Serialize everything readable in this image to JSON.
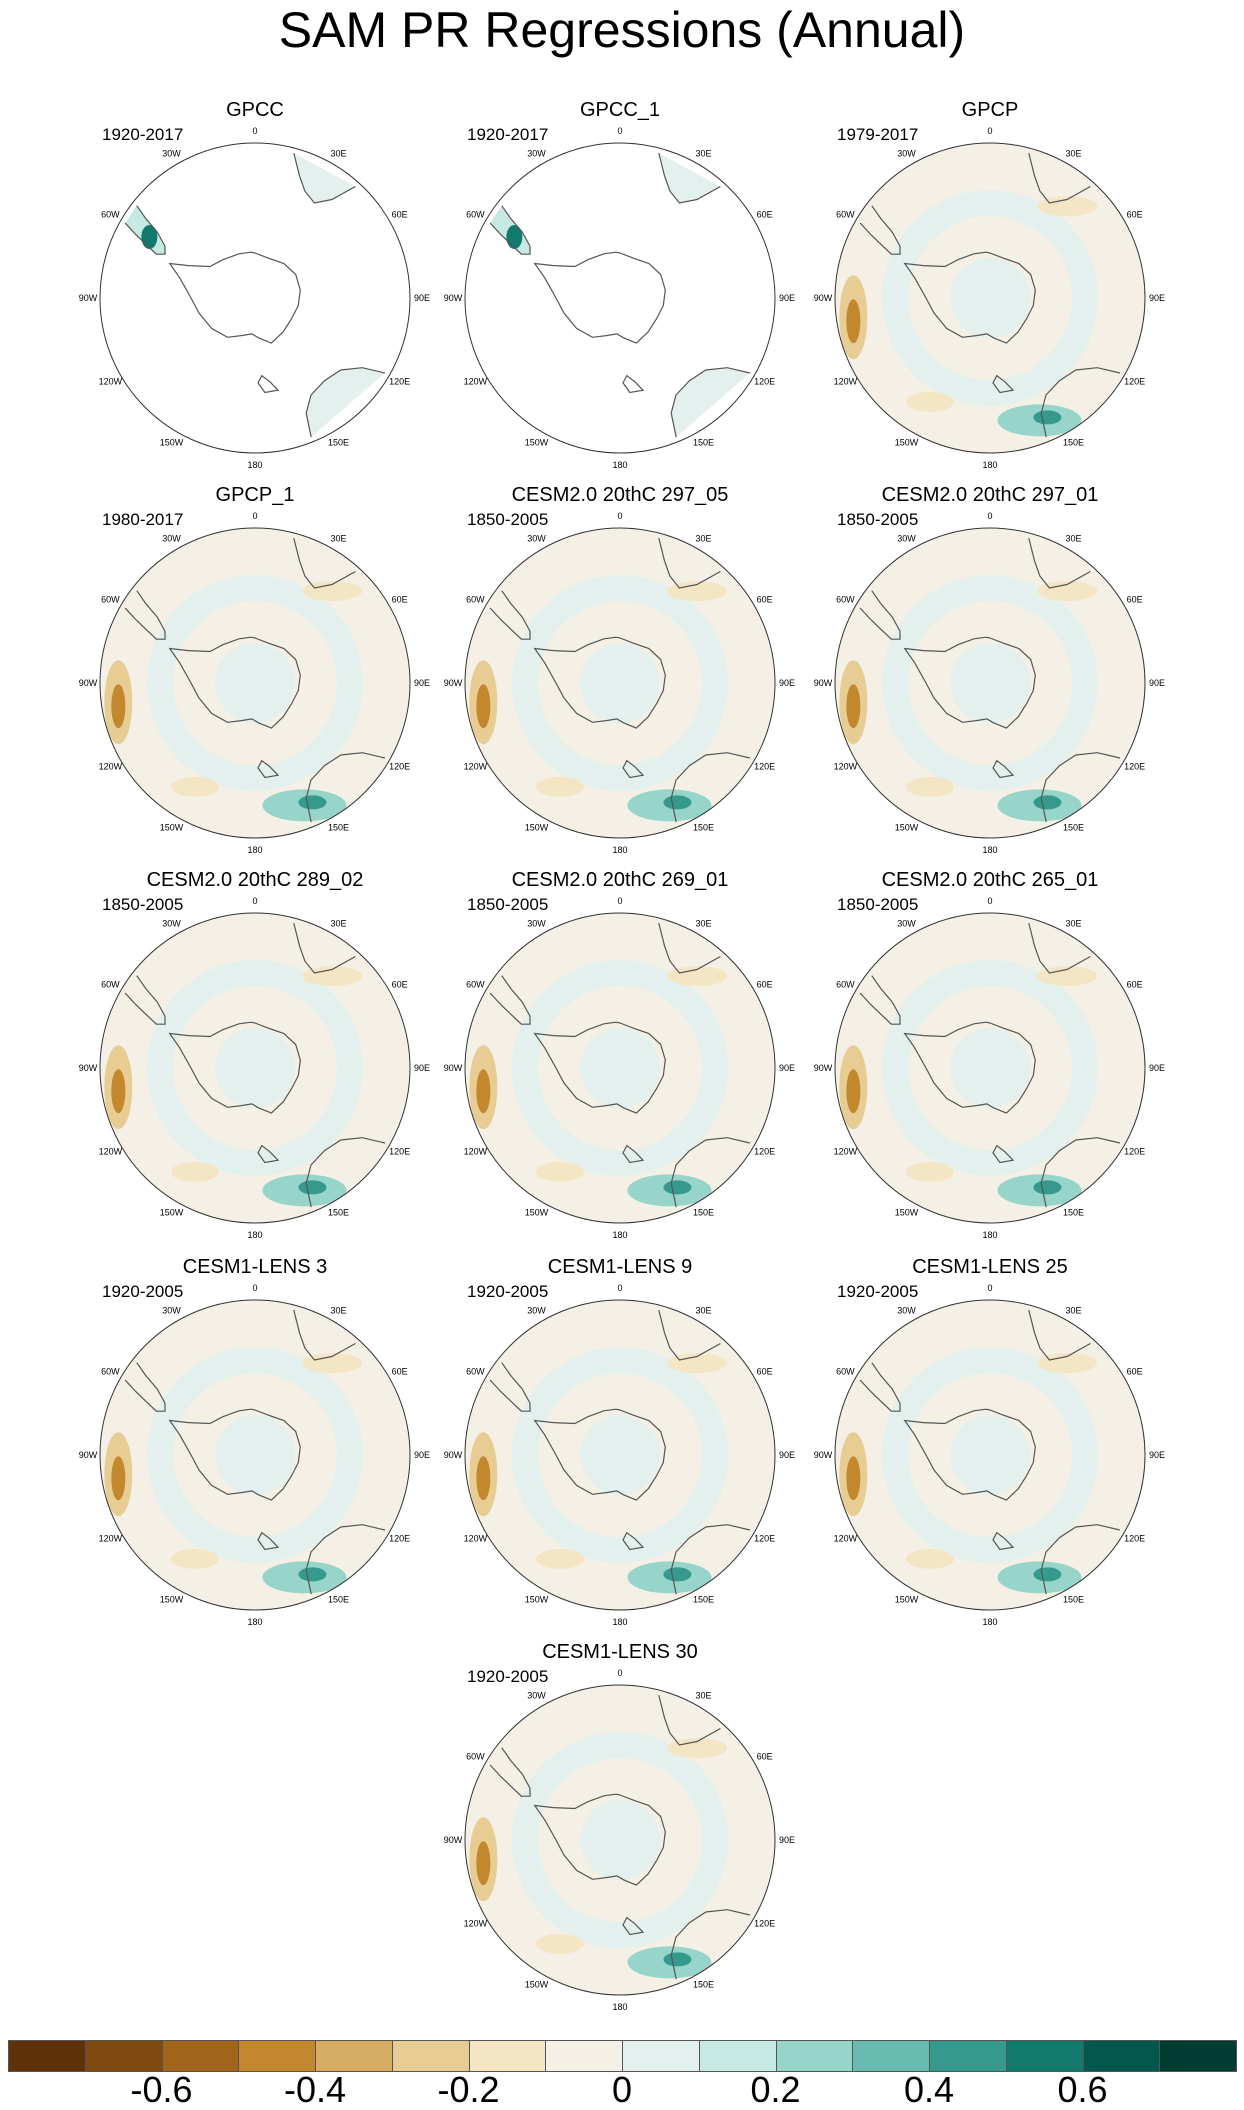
{
  "title": "SAM PR Regressions (Annual)",
  "longitude_labels": [
    "0",
    "30E",
    "60E",
    "90E",
    "120E",
    "150E",
    "180",
    "150W",
    "120W",
    "90W",
    "60W",
    "30W"
  ],
  "panels": [
    {
      "name": "GPCC",
      "period": "1920-2017",
      "coverage": "land-only"
    },
    {
      "name": "GPCC_1",
      "period": "1920-2017",
      "coverage": "land-only"
    },
    {
      "name": "GPCP",
      "period": "1979-2017",
      "coverage": "global"
    },
    {
      "name": "GPCP_1",
      "period": "1980-2017",
      "coverage": "global"
    },
    {
      "name": "CESM2.0 20thC 297_05",
      "period": "1850-2005",
      "coverage": "global"
    },
    {
      "name": "CESM2.0 20thC 297_01",
      "period": "1850-2005",
      "coverage": "global"
    },
    {
      "name": "CESM2.0 20thC 289_02",
      "period": "1850-2005",
      "coverage": "global"
    },
    {
      "name": "CESM2.0 20thC 269_01",
      "period": "1850-2005",
      "coverage": "global"
    },
    {
      "name": "CESM2.0 20thC 265_01",
      "period": "1850-2005",
      "coverage": "global"
    },
    {
      "name": "CESM1-LENS 3",
      "period": "1920-2005",
      "coverage": "global"
    },
    {
      "name": "CESM1-LENS 9",
      "period": "1920-2005",
      "coverage": "global"
    },
    {
      "name": "CESM1-LENS 25",
      "period": "1920-2005",
      "coverage": "global"
    },
    {
      "name": "CESM1-LENS 30",
      "period": "1920-2005",
      "coverage": "global"
    }
  ],
  "colorbar": {
    "colors": [
      "#5e3108",
      "#7e4a10",
      "#a0651a",
      "#c3872e",
      "#d6ad63",
      "#e7cd94",
      "#f4e6c5",
      "#f4f0e6",
      "#e4f0ee",
      "#c6e9e3",
      "#97d4c9",
      "#67bcaf",
      "#359a8d",
      "#127a6d",
      "#03584e",
      "#003c32"
    ],
    "tick_labels": [
      "-0.6",
      "-0.4",
      "-0.2",
      "0",
      "0.2",
      "0.4",
      "0.6"
    ]
  }
}
